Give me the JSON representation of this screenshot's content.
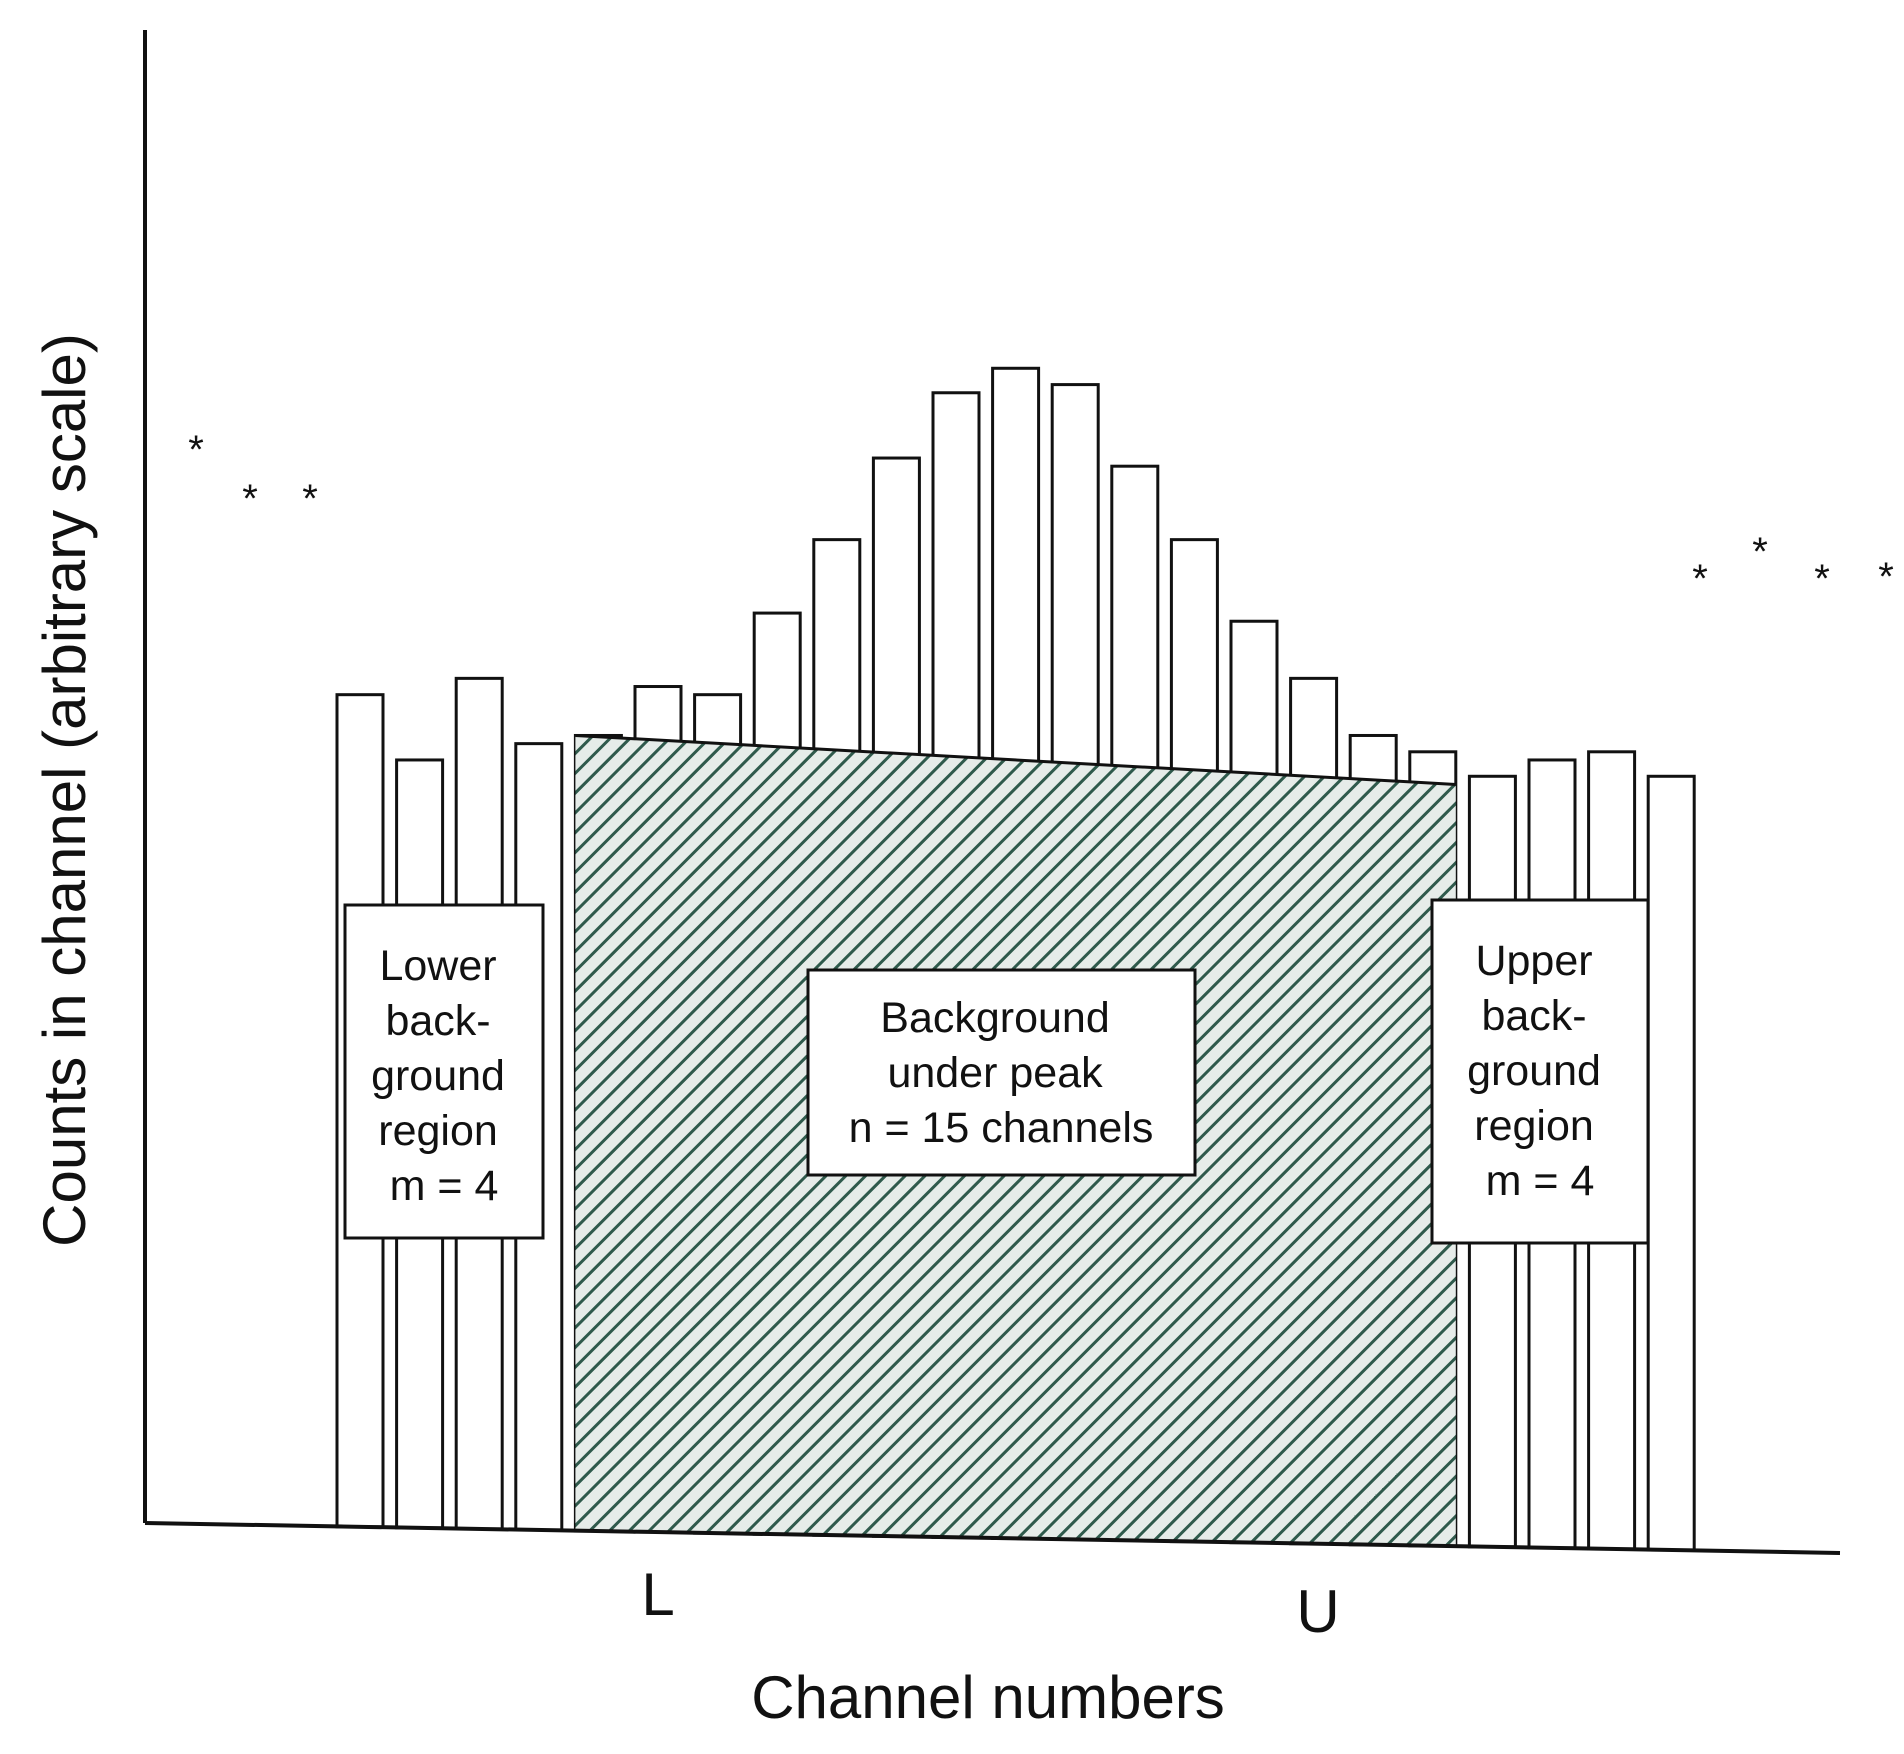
{
  "chart_data": {
    "type": "bar",
    "xlabel": "Channel numbers",
    "ylabel": "Counts in channel (arbitrary scale)",
    "x_tick_labels": [
      {
        "channel": 6,
        "label": "L"
      },
      {
        "channel": 20,
        "label": "U"
      }
    ],
    "series": [
      {
        "values": [
          102,
          94,
          104,
          96,
          97,
          103,
          102,
          112,
          121,
          131,
          139,
          142,
          140,
          130,
          121,
          111,
          104,
          97,
          95,
          92,
          94,
          95,
          92
        ]
      }
    ],
    "background_fraction": [
      0,
      0,
      0,
      0,
      1,
      1,
      1,
      1,
      1,
      1,
      1,
      1,
      1,
      1,
      1,
      1,
      1,
      1,
      1,
      0,
      0,
      0,
      0
    ],
    "background_line": {
      "start_counts": 97,
      "end_counts": 91
    },
    "ylim": [
      0,
      150
    ],
    "grid": false,
    "regions": [
      {
        "name": "lower_background",
        "lines": [
          "Lower",
          "back-",
          "ground",
          "region",
          "m = 4"
        ]
      },
      {
        "name": "background_under_peak",
        "lines": [
          "Background",
          "under peak",
          "n = 15 channels"
        ]
      },
      {
        "name": "upper_background",
        "lines": [
          "Upper",
          "back-",
          "ground",
          "region",
          "m = 4"
        ]
      }
    ],
    "marker_symbol": "*",
    "hatch_color": "#2f5a4c"
  }
}
